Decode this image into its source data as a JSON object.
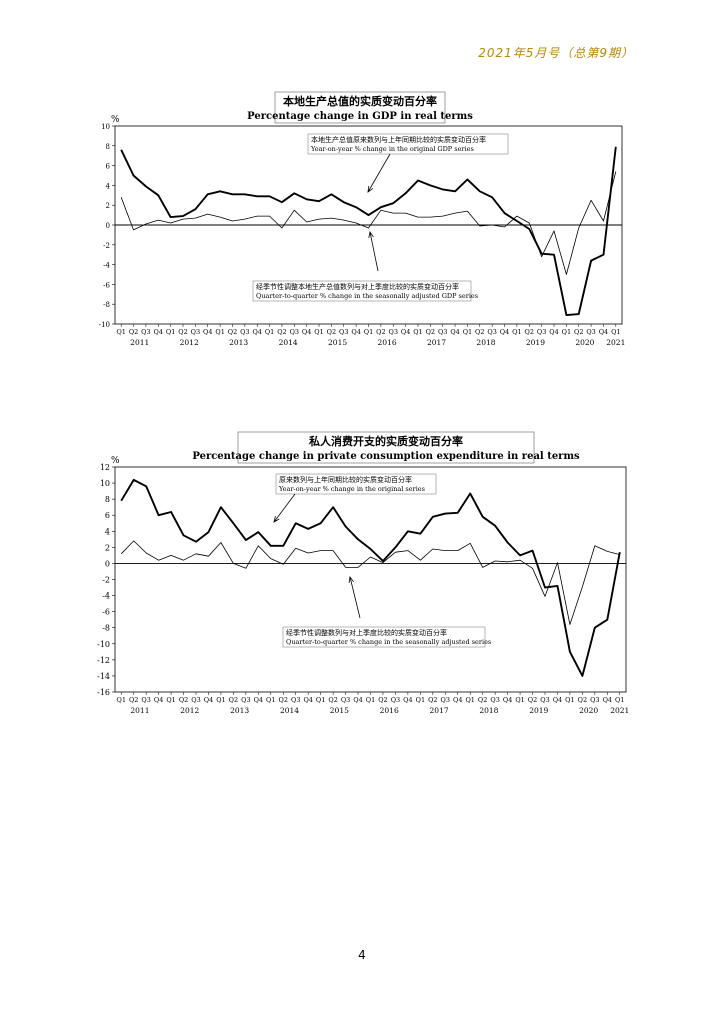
{
  "header": "2021年5月号（总第9期）",
  "page_number": "4",
  "chart_data": [
    {
      "type": "line",
      "title": "本地生产总值的实质变动百分率",
      "subtitle": "Percentage change in GDP in real terms",
      "ylabel": "%",
      "ylim": [
        -10,
        10
      ],
      "yticks": [
        10,
        8,
        6,
        4,
        2,
        0,
        -2,
        -4,
        -6,
        -8,
        -10
      ],
      "quarter_labels": [
        "Q1",
        "Q2",
        "Q3",
        "Q4",
        "Q1",
        "Q2",
        "Q3",
        "Q4",
        "Q1",
        "Q2",
        "Q3",
        "Q4",
        "Q1",
        "Q2",
        "Q3",
        "Q4",
        "Q1",
        "Q2",
        "Q3",
        "Q4",
        "Q1",
        "Q2",
        "Q3",
        "Q4",
        "Q1",
        "Q2",
        "Q3",
        "Q4",
        "Q1",
        "Q2",
        "Q3",
        "Q4",
        "Q1",
        "Q2",
        "Q3",
        "Q4",
        "Q1",
        "Q2",
        "Q3",
        "Q4",
        "Q1"
      ],
      "year_labels": [
        "2011",
        "2012",
        "2013",
        "2014",
        "2015",
        "2016",
        "2017",
        "2018",
        "2019",
        "2020",
        "2021"
      ],
      "series": [
        {
          "name": "本地生产总值原来数列与上年同期比较的实质变动百分率 Year-on-year % change in the original GDP series",
          "values": [
            7.6,
            5.0,
            3.9,
            3.0,
            0.8,
            0.9,
            1.6,
            3.1,
            3.4,
            3.1,
            3.1,
            2.9,
            2.9,
            2.3,
            3.2,
            2.6,
            2.4,
            3.1,
            2.3,
            1.8,
            1.0,
            1.8,
            2.2,
            3.2,
            4.5,
            4.0,
            3.6,
            3.4,
            4.6,
            3.4,
            2.8,
            1.2,
            0.4,
            -0.4,
            -2.9,
            -3.0,
            -9.1,
            -9.0,
            -3.6,
            -3.0,
            7.9
          ]
        },
        {
          "name": "经季节性调整本地生产总值数列与对上季度比较的实质变动百分率 Quarter-to-quarter % change in the seasonally adjusted GDP series",
          "values": [
            2.8,
            -0.5,
            0.1,
            0.5,
            0.2,
            0.6,
            0.7,
            1.1,
            0.8,
            0.4,
            0.6,
            0.9,
            0.9,
            -0.3,
            1.5,
            0.3,
            0.6,
            0.7,
            0.5,
            0.2,
            -0.3,
            1.5,
            1.2,
            1.2,
            0.8,
            0.8,
            0.9,
            1.2,
            1.4,
            -0.1,
            0.0,
            -0.2,
            0.9,
            0.2,
            -3.2,
            -0.6,
            -5.0,
            -0.3,
            2.5,
            0.4,
            5.4
          ]
        }
      ],
      "annotations": [
        {
          "zh": "本地生产总值原来数列与上年同期比较的实质变动百分率",
          "en": "Year-on-year % change in the original GDP series"
        },
        {
          "zh": "经季节性调整本地生产总值数列与对上季度比较的实质变动百分率",
          "en": "Quarter-to-quarter % change in the seasonally adjusted GDP series"
        }
      ],
      "grid": false
    },
    {
      "type": "line",
      "title": "私人消费开支的实质变动百分率",
      "subtitle": "Percentage change in private consumption expenditure in real terms",
      "ylabel": "%",
      "ylim": [
        -16,
        12
      ],
      "yticks": [
        12,
        10,
        8,
        6,
        4,
        2,
        0,
        -2,
        -4,
        -6,
        -8,
        -10,
        -12,
        -14,
        -16
      ],
      "quarter_labels": [
        "Q1",
        "Q2",
        "Q3",
        "Q4",
        "Q1",
        "Q2",
        "Q3",
        "Q4",
        "Q1",
        "Q2",
        "Q3",
        "Q4",
        "Q1",
        "Q2",
        "Q3",
        "Q4",
        "Q1",
        "Q2",
        "Q3",
        "Q4",
        "Q1",
        "Q2",
        "Q3",
        "Q4",
        "Q1",
        "Q2",
        "Q3",
        "Q4",
        "Q1",
        "Q2",
        "Q3",
        "Q4",
        "Q1",
        "Q2",
        "Q3",
        "Q4",
        "Q1",
        "Q2",
        "Q3",
        "Q4",
        "Q1"
      ],
      "year_labels": [
        "2011",
        "2012",
        "2013",
        "2014",
        "2015",
        "2016",
        "2017",
        "2018",
        "2019",
        "2020",
        "2021"
      ],
      "series": [
        {
          "name": "原来数列与上年同期比较的实质变动百分率 Year-on-year % change in the original series",
          "values": [
            7.8,
            10.4,
            9.6,
            6.0,
            6.4,
            3.5,
            2.7,
            3.9,
            7.0,
            5.0,
            2.9,
            3.9,
            2.2,
            2.2,
            5.0,
            4.3,
            5.0,
            7.0,
            4.6,
            3.0,
            1.8,
            0.3,
            2.0,
            4.0,
            3.7,
            5.8,
            6.2,
            6.3,
            8.7,
            5.8,
            4.7,
            2.6,
            1.0,
            1.6,
            -3.0,
            -2.8,
            -11.0,
            -14.0,
            -8.0,
            -7.0,
            1.4
          ]
        },
        {
          "name": "经季节性调整数列与对上季度比较的实质变动百分率 Quarter-to-quarter % change in the seasonally adjusted series",
          "values": [
            1.2,
            2.8,
            1.3,
            0.4,
            1.0,
            0.4,
            1.2,
            0.9,
            2.6,
            0.0,
            -0.6,
            2.2,
            0.6,
            -0.1,
            1.9,
            1.3,
            1.6,
            1.6,
            -0.5,
            -0.5,
            0.8,
            0.1,
            1.4,
            1.6,
            0.4,
            1.8,
            1.6,
            1.6,
            2.5,
            -0.5,
            0.3,
            0.2,
            0.4,
            -0.6,
            -4.1,
            0.1,
            -7.6,
            -2.9,
            2.2,
            1.5,
            1.1
          ]
        }
      ],
      "annotations": [
        {
          "zh": "原来数列与上年同期比较的实质变动百分率",
          "en": "Year-on-year % change in the original series"
        },
        {
          "zh": "经季节性调整数列与对上季度比较的实质变动百分率",
          "en": "Quarter-to-quarter % change in the seasonally adjusted series"
        }
      ],
      "grid": false
    }
  ]
}
